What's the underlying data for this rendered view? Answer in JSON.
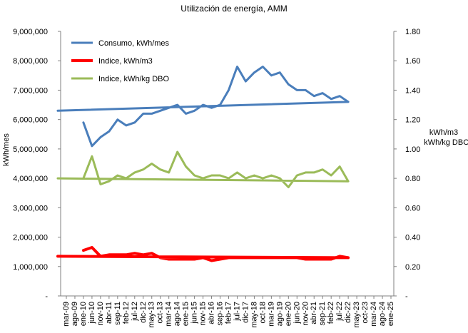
{
  "chart_data": {
    "type": "line",
    "title": "Utilización de energía, AMM",
    "ylabel_left": "kWh/mes",
    "ylabel_right": [
      "kWh/m3",
      "kWh/kg DBO"
    ],
    "ylim_left": [
      0,
      9000000
    ],
    "ylim_right": [
      0,
      1.8
    ],
    "yticks_left": [
      "-",
      "1,000,000",
      "2,000,000",
      "3,000,000",
      "4,000,000",
      "5,000,000",
      "6,000,000",
      "7,000,000",
      "8,000,000",
      "9,000,000"
    ],
    "yticks_right": [
      "-",
      "0.20",
      "0.40",
      "0.60",
      "0.80",
      "1.00",
      "1.20",
      "1.40",
      "1.60",
      "1.80"
    ],
    "xticks": [
      "mar-09",
      "ago-09",
      "ene-10",
      "jun-10",
      "nov-10",
      "abr-11",
      "sep-11",
      "feb-12",
      "jul-12",
      "dic-12",
      "may-13",
      "oct-13",
      "mar-14",
      "ago-14",
      "ene-15",
      "jun-15",
      "nov-15",
      "abr-16",
      "sep-16",
      "feb-17",
      "jul-17",
      "dic-17",
      "may-18",
      "oct-18",
      "mar-19",
      "ago-19",
      "ene-20",
      "jun-20",
      "nov-20",
      "abr-21",
      "sep-21",
      "feb-22",
      "jul-22",
      "dic-22",
      "may-23",
      "oct-23",
      "mar-24",
      "ago-24",
      "ene-25"
    ],
    "x_start": "mar-09",
    "x_points": [
      "ene-10",
      "jun-10",
      "nov-10",
      "abr-11",
      "sep-11",
      "feb-12",
      "jul-12",
      "dic-12",
      "may-13",
      "oct-13",
      "mar-14",
      "ago-14",
      "ene-15",
      "jun-15",
      "nov-15",
      "abr-16",
      "sep-16",
      "feb-17",
      "jul-17",
      "dic-17",
      "may-18",
      "oct-18",
      "mar-19",
      "ago-19",
      "ene-20",
      "jun-20",
      "nov-20",
      "abr-21",
      "sep-21",
      "feb-22",
      "jul-22",
      "dic-22",
      "mar-23"
    ],
    "series": [
      {
        "name": "Consumo, kWh/mes",
        "axis": "left",
        "color": "#4a7ebb",
        "values": [
          5900000,
          5100000,
          5400000,
          5600000,
          6000000,
          5800000,
          5900000,
          6200000,
          6200000,
          6300000,
          6400000,
          6500000,
          6200000,
          6300000,
          6500000,
          6400000,
          6500000,
          7000000,
          7800000,
          7300000,
          7600000,
          7800000,
          7500000,
          7600000,
          7200000,
          7000000,
          7000000,
          6800000,
          6900000,
          6700000,
          6800000,
          6600000,
          6300000
        ]
      },
      {
        "name": "Indice, kWh/m3",
        "axis": "right",
        "color": "#ff0000",
        "values": [
          0.31,
          0.33,
          0.27,
          0.28,
          0.28,
          0.28,
          0.29,
          0.28,
          0.29,
          0.26,
          0.25,
          0.25,
          0.25,
          0.25,
          0.26,
          0.24,
          0.25,
          0.26,
          0.26,
          0.26,
          0.26,
          0.26,
          0.26,
          0.26,
          0.26,
          0.26,
          0.25,
          0.25,
          0.25,
          0.25,
          0.27,
          0.26,
          0.27
        ]
      },
      {
        "name": "Indice, kWh/kg DBO",
        "axis": "right",
        "color": "#9bbb59",
        "values": [
          0.8,
          0.95,
          0.76,
          0.78,
          0.82,
          0.8,
          0.84,
          0.86,
          0.9,
          0.86,
          0.84,
          0.98,
          0.88,
          0.82,
          0.8,
          0.82,
          0.82,
          0.8,
          0.84,
          0.8,
          0.82,
          0.8,
          0.82,
          0.8,
          0.74,
          0.82,
          0.84,
          0.84,
          0.86,
          0.82,
          0.88,
          0.78,
          0.8
        ]
      }
    ],
    "legend": {
      "position": "top-left",
      "entries": [
        "Consumo, kWh/mes",
        "Indice, kWh/m3",
        "Indice, kWh/kg DBO"
      ]
    },
    "grid": false
  }
}
